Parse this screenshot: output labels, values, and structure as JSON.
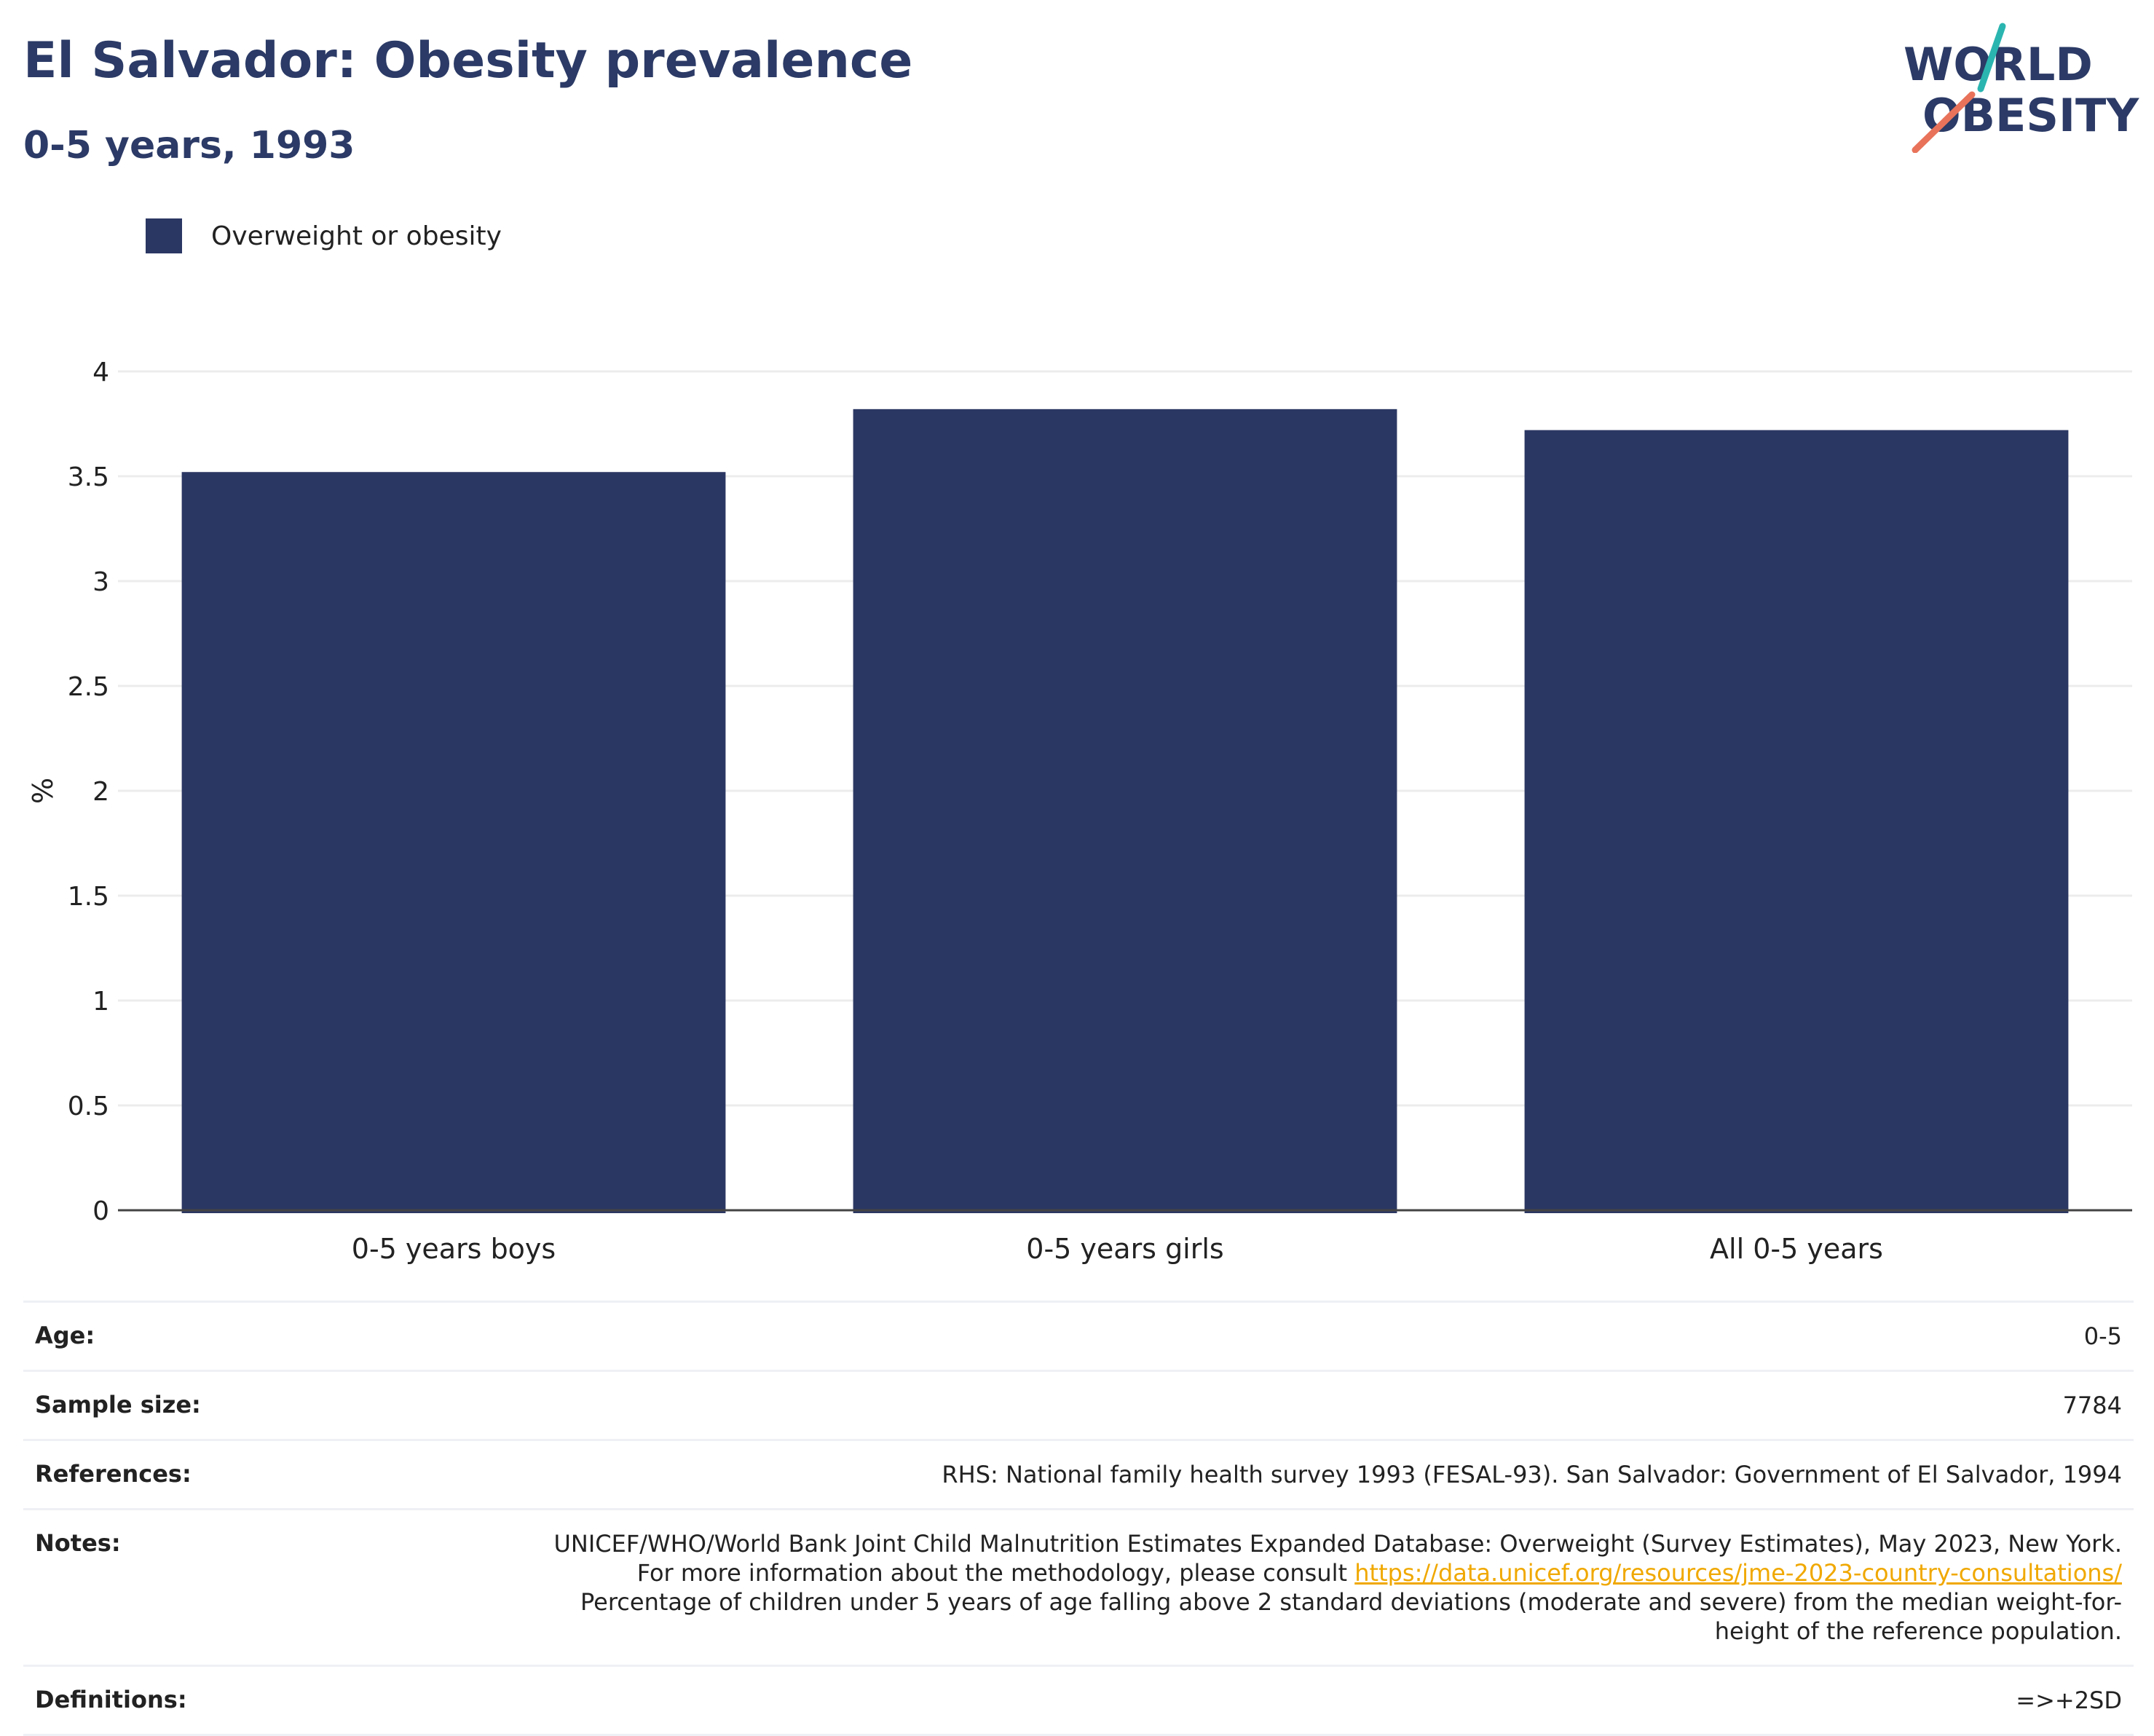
{
  "header": {
    "title": "El Salvador: Obesity prevalence",
    "subtitle": "0-5 years, 1993"
  },
  "logo": {
    "line1": "WORLD",
    "line2": "OBESITY"
  },
  "legend": {
    "label": "Overweight or obesity",
    "color": "#2b3763"
  },
  "chart_data": {
    "type": "bar",
    "categories": [
      "0-5 years boys",
      "0-5 years girls",
      "All 0-5 years"
    ],
    "series": [
      {
        "name": "Overweight or obesity",
        "values": [
          3.52,
          3.82,
          3.72
        ],
        "color": "#2b3763"
      }
    ],
    "ylabel": "%",
    "ylim": [
      0,
      4
    ],
    "yticks": [
      0,
      0.5,
      1,
      1.5,
      2,
      2.5,
      3,
      3.5,
      4
    ],
    "ytick_labels": [
      "0",
      "0.5",
      "1",
      "1.5",
      "2",
      "2.5",
      "3",
      "3.5",
      "4"
    ],
    "grid": true
  },
  "meta": {
    "age_label": "Age:",
    "age_value": "0-5",
    "sample_label": "Sample size:",
    "sample_value": "7784",
    "references_label": "References:",
    "references_value": "RHS: National family health survey 1993 (FESAL-93). San Salvador: Government of El Salvador, 1994",
    "notes_label": "Notes:",
    "notes_text1": "UNICEF/WHO/World Bank Joint Child Malnutrition Estimates Expanded Database: Overweight (Survey Estimates), May 2023, New York. For more information about the methodology, please consult ",
    "notes_link": "https://data.unicef.org/resources/jme-2023-country-consultations/",
    "notes_text2": "Percentage of children under 5 years of age falling above 2 standard deviations (moderate and severe) from the median weight-for-height of the reference population.",
    "definitions_label": "Definitions:",
    "definitions_value": "=>+2SD"
  }
}
